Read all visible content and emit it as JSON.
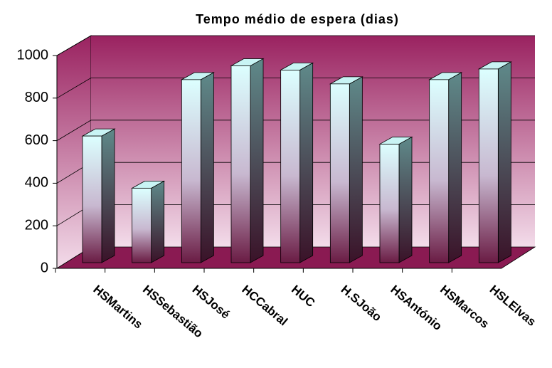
{
  "chart_data": {
    "type": "bar3d",
    "title": "Tempo médio de espera (dias)",
    "categories": [
      "HSMartins",
      "HSSebastião",
      "HSJosé",
      "HCCabral",
      "HUC",
      "H.SJoão",
      "HSAntónio",
      "HSMarcos",
      "HSLElvas"
    ],
    "values": [
      595,
      350,
      860,
      925,
      905,
      840,
      557,
      860,
      910
    ],
    "ylim": [
      0,
      1000
    ],
    "yticks": [
      0,
      200,
      400,
      600,
      800,
      1000
    ],
    "grid": true
  }
}
